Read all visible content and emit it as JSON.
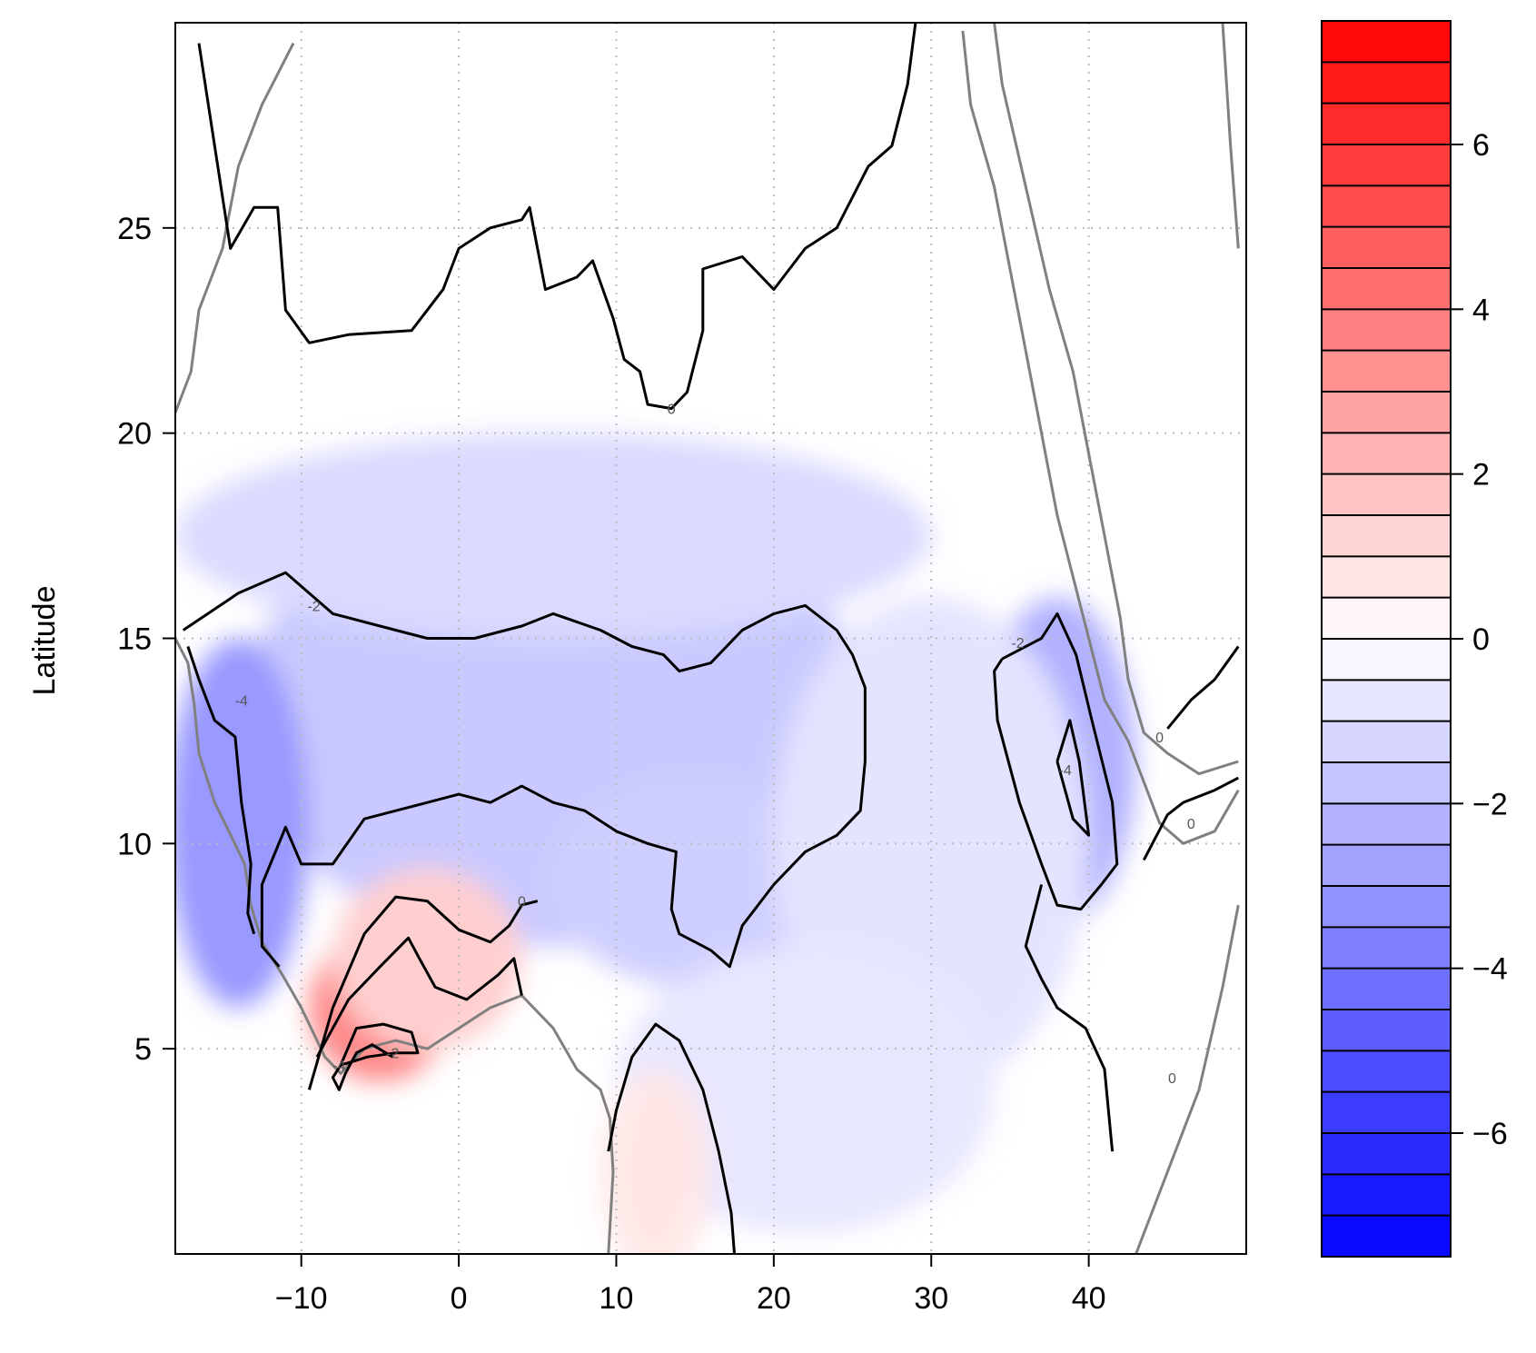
{
  "chart_data": {
    "type": "heatmap",
    "title": "",
    "xlabel": "",
    "ylabel": "Latitude",
    "xlim": [
      -18,
      50
    ],
    "ylim": [
      0,
      30
    ],
    "x_ticks": [
      -10,
      0,
      10,
      20,
      30,
      40
    ],
    "y_ticks": [
      5,
      10,
      15,
      20,
      25
    ],
    "grid": true,
    "colorbar": {
      "range": [
        -7.5,
        7.5
      ],
      "step": 0.5,
      "ticks": [
        -6,
        -4,
        -2,
        0,
        2,
        4,
        6
      ],
      "min_color": "#0000ff",
      "mid_color": "#ffffff",
      "max_color": "#ff0000",
      "placement": "right"
    },
    "contour_labels": [
      {
        "text": "0",
        "lon": 13.5,
        "lat": 20.6
      },
      {
        "text": "-2",
        "lon": -9.2,
        "lat": 15.8
      },
      {
        "text": "-2",
        "lon": 35.5,
        "lat": 14.9
      },
      {
        "text": "-4",
        "lon": -13.8,
        "lat": 13.5
      },
      {
        "text": "-4",
        "lon": 38.5,
        "lat": 11.8
      },
      {
        "text": "0",
        "lon": 4.0,
        "lat": 8.6
      },
      {
        "text": "-2",
        "lon": -4.2,
        "lat": 4.9
      },
      {
        "text": "-4",
        "lon": -7.6,
        "lat": 4.6
      },
      {
        "text": "0",
        "lon": 44.5,
        "lat": 12.6
      },
      {
        "text": "0",
        "lon": 46.5,
        "lat": 10.5
      },
      {
        "text": "0",
        "lon": 45.3,
        "lat": 4.3
      }
    ]
  },
  "field": {
    "anomalies": [
      {
        "lon": -3,
        "lat": 12.5,
        "rlon": 15,
        "rlat": 2.6,
        "value": -3.0
      },
      {
        "lon": 13,
        "lat": 12.0,
        "rlon": 10,
        "rlat": 2.6,
        "value": -3.0
      },
      {
        "lon": 21,
        "lat": 12.5,
        "rlon": 6,
        "rlat": 2.4,
        "value": -3.4
      },
      {
        "lon": 6,
        "lat": 13.0,
        "rlon": 20,
        "rlat": 5.5,
        "value": -1.6
      },
      {
        "lon": 15,
        "lat": 9.0,
        "rlon": 9,
        "rlat": 2.5,
        "value": -1.4
      },
      {
        "lon": 6,
        "lat": 17.5,
        "rlon": 24,
        "rlat": 2.5,
        "value": -1.1
      },
      {
        "lon": -15,
        "lat": 11.5,
        "rlon": 2.6,
        "rlat": 3.0,
        "value": -6.5
      },
      {
        "lon": -14,
        "lat": 10.5,
        "rlon": 4.5,
        "rlat": 4.5,
        "value": -3.0
      },
      {
        "lon": 38.8,
        "lat": 11.5,
        "rlon": 2.6,
        "rlat": 2.6,
        "value": -4.2
      },
      {
        "lon": 38,
        "lat": 12.0,
        "rlon": 5,
        "rlat": 4.0,
        "value": -2.3
      },
      {
        "lon": 30,
        "lat": 10.0,
        "rlon": 10,
        "rlat": 6.0,
        "value": -0.8
      },
      {
        "lon": 22,
        "lat": 4.0,
        "rlon": 12,
        "rlat": 3.5,
        "value": -0.7
      },
      {
        "lon": -5,
        "lat": 6.0,
        "rlon": 4.5,
        "rlat": 1.8,
        "value": 3.5
      },
      {
        "lon": -2,
        "lat": 7.2,
        "rlon": 6,
        "rlat": 2.2,
        "value": 1.4
      },
      {
        "lon": 12.5,
        "lat": 2.0,
        "rlon": 3.5,
        "rlat": 2.5,
        "value": 0.7
      }
    ],
    "contours_black": [
      [
        [
          -17.5,
          15.2
        ],
        [
          -14,
          16.1
        ],
        [
          -11,
          16.6
        ],
        [
          -8,
          15.6
        ],
        [
          -5,
          15.3
        ],
        [
          -2,
          15.0
        ],
        [
          1,
          15.0
        ],
        [
          4,
          15.3
        ],
        [
          6,
          15.6
        ],
        [
          9,
          15.2
        ],
        [
          11,
          14.8
        ],
        [
          13,
          14.6
        ],
        [
          14,
          14.2
        ],
        [
          16,
          14.4
        ],
        [
          18,
          15.2
        ],
        [
          20,
          15.6
        ],
        [
          22,
          15.8
        ],
        [
          24,
          15.2
        ],
        [
          25,
          14.6
        ],
        [
          25.8,
          13.8
        ],
        [
          25.8,
          12.0
        ],
        [
          25.5,
          10.8
        ],
        [
          24,
          10.2
        ],
        [
          22,
          9.8
        ],
        [
          20,
          9.0
        ],
        [
          18,
          8.0
        ],
        [
          17.2,
          7.0
        ],
        [
          16,
          7.4
        ],
        [
          15,
          7.6
        ],
        [
          14,
          7.8
        ],
        [
          13.5,
          8.4
        ],
        [
          13.8,
          9.8
        ],
        [
          12,
          10.0
        ],
        [
          10,
          10.3
        ],
        [
          8,
          10.8
        ],
        [
          6,
          11.0
        ],
        [
          4,
          11.4
        ],
        [
          2,
          11.0
        ],
        [
          0,
          11.2
        ],
        [
          -2,
          11.0
        ],
        [
          -4,
          10.8
        ],
        [
          -6,
          10.6
        ],
        [
          -8,
          9.5
        ],
        [
          -10,
          9.5
        ],
        [
          -11,
          10.4
        ],
        [
          -12.5,
          9.0
        ],
        [
          -12.5,
          7.5
        ],
        [
          -11.4,
          7.0
        ]
      ],
      [
        [
          -17.2,
          14.8
        ],
        [
          -16.5,
          14.0
        ],
        [
          -15.5,
          13.0
        ],
        [
          -14.2,
          12.6
        ],
        [
          -13.8,
          11.0
        ],
        [
          -13.2,
          9.5
        ],
        [
          -13.4,
          8.3
        ],
        [
          -13.0,
          7.8
        ]
      ],
      [
        [
          34.5,
          14.5
        ],
        [
          37,
          15.0
        ],
        [
          38,
          15.6
        ],
        [
          39.2,
          14.6
        ],
        [
          40.2,
          13.0
        ],
        [
          41.5,
          11.0
        ],
        [
          41.8,
          9.5
        ],
        [
          40.8,
          9.0
        ],
        [
          39.5,
          8.4
        ],
        [
          38.0,
          8.5
        ],
        [
          37.0,
          9.5
        ],
        [
          35.6,
          11.0
        ],
        [
          34.2,
          13.0
        ],
        [
          34.0,
          14.2
        ],
        [
          34.5,
          14.5
        ]
      ],
      [
        [
          38.0,
          12.0
        ],
        [
          38.8,
          13.0
        ],
        [
          39.4,
          12.0
        ],
        [
          40.0,
          10.2
        ],
        [
          39.0,
          10.6
        ],
        [
          38.0,
          12.0
        ]
      ],
      [
        [
          -9.5,
          4.0
        ],
        [
          -8,
          6.0
        ],
        [
          -6,
          7.8
        ],
        [
          -4,
          8.7
        ],
        [
          -2,
          8.6
        ],
        [
          0,
          7.9
        ],
        [
          2,
          7.6
        ],
        [
          3.2,
          8.0
        ],
        [
          4,
          8.5
        ],
        [
          5,
          8.6
        ]
      ],
      [
        [
          -9.0,
          4.8
        ],
        [
          -7.0,
          6.2
        ],
        [
          -5.0,
          7.0
        ],
        [
          -3.2,
          7.7
        ],
        [
          -2.5,
          7.2
        ],
        [
          -1.5,
          6.5
        ],
        [
          0.5,
          6.2
        ],
        [
          2.5,
          6.8
        ],
        [
          3.5,
          7.2
        ],
        [
          4.0,
          6.3
        ]
      ],
      [
        [
          -7.5,
          4.6
        ],
        [
          -6.5,
          5.5
        ],
        [
          -4.8,
          5.6
        ],
        [
          -3.0,
          5.4
        ],
        [
          -2.6,
          4.9
        ],
        [
          -4.0,
          4.9
        ],
        [
          -5.8,
          4.8
        ],
        [
          -7.5,
          4.6
        ]
      ],
      [
        [
          -4.2,
          4.8
        ],
        [
          -5.5,
          5.1
        ],
        [
          -6.5,
          4.9
        ],
        [
          -7.2,
          4.4
        ],
        [
          -7.6,
          4.0
        ],
        [
          -8,
          4.3
        ],
        [
          -7.5,
          4.6
        ]
      ],
      [
        [
          9.5,
          2.5
        ],
        [
          10,
          3.5
        ],
        [
          11,
          4.8
        ],
        [
          12.5,
          5.6
        ],
        [
          14,
          5.2
        ],
        [
          15.5,
          4.0
        ],
        [
          16.5,
          2.5
        ],
        [
          17.3,
          1.0
        ],
        [
          17.5,
          0.0
        ]
      ],
      [
        [
          -16.5,
          29.5
        ],
        [
          -15.5,
          27.0
        ],
        [
          -14.5,
          24.5
        ],
        [
          -13.0,
          25.5
        ],
        [
          -11.5,
          25.5
        ],
        [
          -11,
          23.0
        ],
        [
          -9.5,
          22.2
        ],
        [
          -7,
          22.4
        ],
        [
          -3,
          22.5
        ],
        [
          -1,
          23.5
        ],
        [
          0,
          24.5
        ],
        [
          2,
          25.0
        ],
        [
          4,
          25.2
        ],
        [
          4.5,
          25.5
        ],
        [
          5.5,
          23.5
        ],
        [
          7.5,
          23.8
        ],
        [
          8.5,
          24.2
        ],
        [
          9.8,
          22.8
        ],
        [
          10.5,
          21.8
        ],
        [
          11.5,
          21.5
        ],
        [
          12,
          20.7
        ],
        [
          13.5,
          20.6
        ],
        [
          14.5,
          21.0
        ],
        [
          15.5,
          22.5
        ],
        [
          15.5,
          24.0
        ],
        [
          18,
          24.3
        ],
        [
          20,
          23.5
        ],
        [
          22,
          24.5
        ],
        [
          24,
          25.0
        ],
        [
          26,
          26.5
        ],
        [
          27.5,
          27.0
        ],
        [
          28.5,
          28.5
        ],
        [
          29,
          30
        ]
      ],
      [
        [
          41.5,
          2.5
        ],
        [
          41.0,
          4.5
        ],
        [
          39.8,
          5.5
        ],
        [
          38,
          6.0
        ],
        [
          37,
          6.7
        ],
        [
          36,
          7.5
        ],
        [
          37,
          9.0
        ]
      ],
      [
        [
          45.0,
          12.8
        ],
        [
          46.5,
          13.5
        ],
        [
          48,
          14.0
        ],
        [
          49.5,
          14.8
        ]
      ],
      [
        [
          43.5,
          9.6
        ],
        [
          45,
          10.7
        ],
        [
          46,
          11.0
        ],
        [
          48,
          11.3
        ],
        [
          49.5,
          11.6
        ]
      ]
    ],
    "coastline_gray": [
      [
        [
          -18,
          15.0
        ],
        [
          -17.2,
          14.4
        ],
        [
          -16.8,
          13.4
        ],
        [
          -16.5,
          12.2
        ],
        [
          -15.5,
          11.0
        ],
        [
          -14.6,
          10.3
        ],
        [
          -13.6,
          9.5
        ],
        [
          -13.2,
          8.5
        ],
        [
          -12.5,
          7.6
        ],
        [
          -11.2,
          6.8
        ],
        [
          -10,
          6.0
        ],
        [
          -8.5,
          4.8
        ],
        [
          -7.5,
          4.4
        ],
        [
          -6,
          5.0
        ],
        [
          -4,
          5.2
        ],
        [
          -2,
          5.0
        ],
        [
          0,
          5.5
        ],
        [
          2,
          6.0
        ],
        [
          4,
          6.3
        ],
        [
          6,
          5.5
        ],
        [
          7.5,
          4.5
        ],
        [
          9,
          4.0
        ],
        [
          9.6,
          3.3
        ],
        [
          9.8,
          2.0
        ],
        [
          9.5,
          0.0
        ]
      ],
      [
        [
          -18,
          20.5
        ],
        [
          -17,
          21.5
        ],
        [
          -16.5,
          23.0
        ],
        [
          -15,
          24.5
        ],
        [
          -14,
          26.5
        ],
        [
          -12.5,
          28.0
        ],
        [
          -10.5,
          29.5
        ]
      ],
      [
        [
          32,
          29.8
        ],
        [
          32.5,
          28.0
        ],
        [
          34,
          26.0
        ],
        [
          35,
          24.0
        ],
        [
          36,
          22.0
        ],
        [
          37,
          20.0
        ],
        [
          38,
          18.0
        ],
        [
          39,
          16.5
        ],
        [
          40,
          15.0
        ],
        [
          41,
          13.5
        ],
        [
          42.5,
          12.5
        ],
        [
          43.5,
          11.5
        ],
        [
          44.5,
          10.5
        ],
        [
          46,
          10.0
        ],
        [
          48,
          10.3
        ],
        [
          49.5,
          11.3
        ]
      ],
      [
        [
          49.5,
          12.0
        ],
        [
          47,
          11.7
        ],
        [
          45,
          12.2
        ],
        [
          43.5,
          12.7
        ],
        [
          42.5,
          14.0
        ],
        [
          42,
          15.5
        ],
        [
          41,
          17.5
        ],
        [
          40,
          19.5
        ],
        [
          39,
          21.5
        ],
        [
          37.5,
          23.5
        ],
        [
          36,
          26.0
        ],
        [
          34.5,
          28.5
        ],
        [
          34,
          30
        ]
      ],
      [
        [
          43,
          0.0
        ],
        [
          45,
          2.0
        ],
        [
          47,
          4.0
        ],
        [
          48.5,
          6.5
        ],
        [
          49.5,
          8.5
        ]
      ],
      [
        [
          48.5,
          30
        ],
        [
          49,
          27
        ],
        [
          49.5,
          24.5
        ]
      ]
    ]
  }
}
